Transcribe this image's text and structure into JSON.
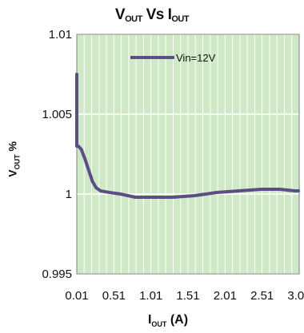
{
  "chart_data": {
    "type": "line",
    "title_main": "V",
    "title_main_sub": "OUT",
    "title_vs": " Vs  I",
    "title_vs_sub": "OUT",
    "ylabel_main": "V",
    "ylabel_sub": "OUT",
    "ylabel_unit": " %",
    "xlabel_main": "I",
    "xlabel_sub": "OUT",
    "xlabel_unit": " (A)",
    "x_ticks": [
      "0.01",
      "0.51",
      "1.01",
      "1.51",
      "2.01",
      "2.51",
      "3.01"
    ],
    "y_ticks": [
      "1.01",
      "1.005",
      "1",
      "0.995"
    ],
    "xlim": [
      0.01,
      3.01
    ],
    "ylim": [
      0.995,
      1.01
    ],
    "grid": true,
    "legend_position": "top-center",
    "series": [
      {
        "name": "Vin=12V",
        "color": "#5b4e82",
        "x": [
          0.01,
          0.01,
          0.03,
          0.07,
          0.12,
          0.17,
          0.22,
          0.27,
          0.33,
          0.45,
          0.6,
          0.8,
          1.01,
          1.3,
          1.6,
          1.9,
          2.2,
          2.5,
          2.75,
          2.95,
          3.0
        ],
        "y": [
          1.0075,
          1.003,
          1.003,
          1.0028,
          1.0022,
          1.0015,
          1.0008,
          1.0004,
          1.0002,
          1.0001,
          1.0,
          0.9998,
          0.9998,
          0.9998,
          0.9999,
          1.0001,
          1.0002,
          1.0003,
          1.0003,
          1.0002,
          1.0002
        ]
      }
    ],
    "colors": {
      "plot_background": "#cfe8c6",
      "grid": "#ffffff",
      "axis_frame": "#808080"
    }
  }
}
